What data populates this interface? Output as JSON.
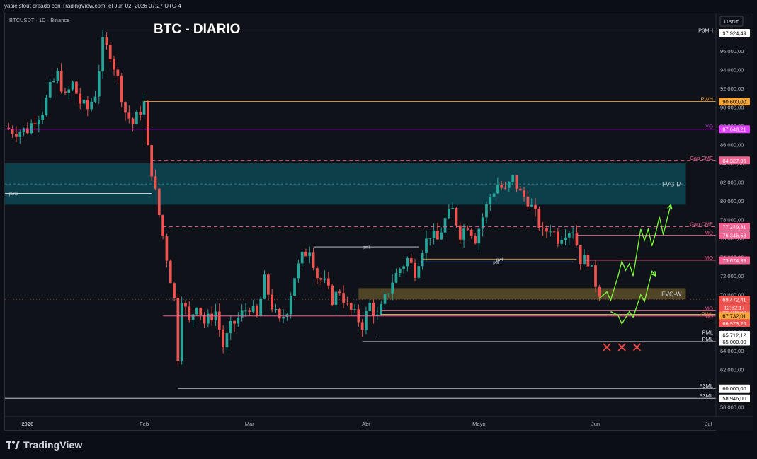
{
  "header": {
    "credit": "yasielstout creado con TradingView.com, el Jun 02, 2026 07:27 UTC-4"
  },
  "symbol": {
    "label": "BTCUSDT · 1D · Binance"
  },
  "currency": "USDT",
  "footer": {
    "brand": "TradingView"
  },
  "colors": {
    "bull": "#26a69a",
    "bear": "#ef5350",
    "fvg_m": "#0e4f5c",
    "fvg_w": "#6b5a2b",
    "projection": "#7cfc3a"
  },
  "chart_data": {
    "type": "candlestick",
    "title": "BTC - DIARIO",
    "ylim": [
      57000,
      100000
    ],
    "y_ticks": [
      58000,
      60000,
      62000,
      64000,
      66000,
      68000,
      70000,
      72000,
      74000,
      76000,
      78000,
      80000,
      82000,
      84000,
      86000,
      88000,
      90000,
      92000,
      94000,
      96000
    ],
    "y_tick_labels": [
      "58.000,00",
      "60.000,00",
      "62.000,00",
      "64.000,00",
      "66.000,00",
      "68.000,00",
      "70.000,00",
      "72.000,00",
      "74.000,00",
      "76.000,00",
      "78.000,00",
      "80.000,00",
      "82.000,00",
      "84.000,00",
      "86.000,00",
      "88.000,00",
      "90.000,00",
      "92.000,00",
      "94.000,00",
      "96.000,00"
    ],
    "x_labels": [
      {
        "label": "2026",
        "day": 0
      },
      {
        "label": "Feb",
        "day": 31
      },
      {
        "label": "Mar",
        "day": 59
      },
      {
        "label": "Abr",
        "day": 90
      },
      {
        "label": "Mayo",
        "day": 120
      },
      {
        "label": "Jun",
        "day": 151
      },
      {
        "label": "Jul",
        "day": 181
      }
    ],
    "x_range_days": [
      -6,
      183
    ],
    "waypoints": [
      [
        -6,
        87800
      ],
      [
        -3,
        87400
      ],
      [
        0,
        87600
      ],
      [
        2,
        88800
      ],
      [
        4,
        89600
      ],
      [
        6,
        92000
      ],
      [
        8,
        93500
      ],
      [
        10,
        91000
      ],
      [
        12,
        92500
      ],
      [
        14,
        90500
      ],
      [
        16,
        89800
      ],
      [
        18,
        91500
      ],
      [
        20,
        96800
      ],
      [
        22,
        95800
      ],
      [
        24,
        93000
      ],
      [
        26,
        89500
      ],
      [
        28,
        88200
      ],
      [
        30,
        89700
      ],
      [
        31,
        90400
      ],
      [
        32,
        85500
      ],
      [
        33,
        83200
      ],
      [
        35,
        78500
      ],
      [
        37,
        74000
      ],
      [
        39,
        69500
      ],
      [
        40,
        63500
      ],
      [
        41,
        69800
      ],
      [
        43,
        67000
      ],
      [
        45,
        69200
      ],
      [
        47,
        67000
      ],
      [
        50,
        68200
      ],
      [
        52,
        64500
      ],
      [
        54,
        66500
      ],
      [
        56,
        67500
      ],
      [
        59,
        68800
      ],
      [
        61,
        67500
      ],
      [
        63,
        71500
      ],
      [
        65,
        68800
      ],
      [
        67,
        67000
      ],
      [
        69,
        68500
      ],
      [
        71,
        72000
      ],
      [
        73,
        74000
      ],
      [
        75,
        75000
      ],
      [
        77,
        72000
      ],
      [
        79,
        71200
      ],
      [
        81,
        69500
      ],
      [
        83,
        70500
      ],
      [
        85,
        68700
      ],
      [
        87,
        67800
      ],
      [
        89,
        66800
      ],
      [
        91,
        69000
      ],
      [
        93,
        67500
      ],
      [
        95,
        69500
      ],
      [
        97,
        71500
      ],
      [
        99,
        72800
      ],
      [
        101,
        73800
      ],
      [
        103,
        72500
      ],
      [
        105,
        75000
      ],
      [
        107,
        76500
      ],
      [
        109,
        75800
      ],
      [
        111,
        78000
      ],
      [
        113,
        79000
      ],
      [
        115,
        76500
      ],
      [
        117,
        77500
      ],
      [
        119,
        76000
      ],
      [
        121,
        78300
      ],
      [
        123,
        80500
      ],
      [
        125,
        81800
      ],
      [
        127,
        81000
      ],
      [
        129,
        82400
      ],
      [
        131,
        80800
      ],
      [
        133,
        80100
      ],
      [
        135,
        78500
      ],
      [
        137,
        76500
      ],
      [
        139,
        77200
      ],
      [
        141,
        76000
      ],
      [
        143,
        76800
      ],
      [
        145,
        77000
      ],
      [
        147,
        73800
      ],
      [
        149,
        73700
      ],
      [
        151,
        71200
      ],
      [
        152,
        70300
      ]
    ],
    "levels": [
      {
        "label": "P3MH",
        "value": 97924.49,
        "value_label": "97.924,49",
        "color": "#e0e3eb",
        "style": "solid",
        "x_start": 20,
        "badge_bg": "#ffffff",
        "badge_fg": "#000000"
      },
      {
        "label": "PWH",
        "value": 90600,
        "value_label": "90.600,00",
        "color": "#e9a23b",
        "style": "solid",
        "x_start": 31,
        "badge_bg": "#f5a53a",
        "badge_fg": "#000000"
      },
      {
        "label": "YO",
        "value": 87648.21,
        "value_label": "87.648,21",
        "color": "#d946ef",
        "style": "solid",
        "x_start": -6,
        "badge_bg": "#e040fb",
        "badge_fg": "#ffffff"
      },
      {
        "label": "Gap CME",
        "value": 84327.06,
        "value_label": "84.327,06",
        "color": "#f06292",
        "style": "dashed",
        "x_start": 33,
        "badge_bg": "#f06292",
        "badge_fg": "#ffffff"
      },
      {
        "label": "Gap CME",
        "value": 77249.31,
        "value_label": "77.249,31",
        "color": "#f06292",
        "style": "dashed",
        "x_start": 36,
        "badge_bg": "#f06292",
        "badge_fg": "#ffffff"
      },
      {
        "label": "MO",
        "value": 76346.58,
        "value_label": "76.346,58",
        "color": "#f06292",
        "style": "solid",
        "x_start": 146,
        "badge_bg": "#f06292",
        "badge_fg": "#ffffff"
      },
      {
        "label": "MO",
        "value": 73674.39,
        "value_label": "73.674,39",
        "color": "#f06292",
        "style": "solid",
        "x_start": 148,
        "badge_bg": "#f06292",
        "badge_fg": "#ffffff"
      },
      {
        "label": "",
        "value": 69472.41,
        "value_label": "69.472,41",
        "color": "#ef5350",
        "style": "dotted",
        "x_start": -6,
        "badge_bg": "#ef5350",
        "badge_fg": "#ffffff"
      },
      {
        "label": "MO",
        "value": 68284.49,
        "value_label": "68.284,49",
        "color": "#f06292",
        "style": "solid",
        "x_start": 94,
        "badge_bg": "#f06292",
        "badge_fg": "#ffffff"
      },
      {
        "label": "PWL",
        "value": 67900,
        "value_label": "",
        "color": "#e9a23b",
        "style": "solid",
        "x_start": 94,
        "badge_bg": "",
        "badge_fg": ""
      },
      {
        "label": "MO",
        "value": 67732.01,
        "value_label": "67.732,01",
        "color": "#f06292",
        "style": "solid",
        "x_start": 36,
        "badge_bg": "#f5a53a",
        "badge_fg": "#000000"
      },
      {
        "label": "",
        "value": 66973.26,
        "value_label": "66.973,26",
        "color": "#ef5350",
        "style": "none",
        "x_start": 0,
        "badge_bg": "#ef5350",
        "badge_fg": "#ffffff"
      },
      {
        "label": "PML",
        "value": 65712.12,
        "value_label": "65.712,12",
        "color": "#e0e3eb",
        "style": "solid",
        "x_start": 93,
        "badge_bg": "#ffffff",
        "badge_fg": "#000000"
      },
      {
        "label": "PML",
        "value": 65000,
        "value_label": "65.000,00",
        "color": "#e0e3eb",
        "style": "solid",
        "x_start": 89,
        "badge_bg": "#ffffff",
        "badge_fg": "#000000"
      },
      {
        "label": "P3ML",
        "value": 60000,
        "value_label": "60.000,00",
        "color": "#e0e3eb",
        "style": "solid",
        "x_start": 40,
        "badge_bg": "#ffffff",
        "badge_fg": "#000000"
      },
      {
        "label": "P3ML",
        "value": 58946,
        "value_label": "58.946,00",
        "color": "#e0e3eb",
        "style": "solid",
        "x_start": -6,
        "badge_bg": "#ffffff",
        "badge_fg": "#000000"
      }
    ],
    "price_timer": {
      "value": 69472.41,
      "text": "12:32:17"
    },
    "zones": [
      {
        "label": "FVG-M",
        "y_top": 84000,
        "y_bottom": 79600,
        "x_start": -6,
        "x_end": 175
      },
      {
        "label": "FVG-W",
        "y_top": 70700,
        "y_bottom": 69500,
        "x_start": 88,
        "x_end": 175
      }
    ],
    "segments": [
      {
        "label": "p3mi",
        "value": 80800,
        "x_start": -6,
        "x_end": 33,
        "color": "#ffffff"
      },
      {
        "label": "pml",
        "value": 75100,
        "x_start": 76,
        "x_end": 104,
        "color": "#d1d4dc"
      },
      {
        "label": "pwl",
        "value": 73800,
        "x_start": 105,
        "x_end": 146,
        "color": "#e9a23b"
      },
      {
        "label": "pdl",
        "value": 73500,
        "x_start": 104,
        "x_end": 145,
        "color": "#5b8def"
      }
    ],
    "projection_up": [
      [
        152,
        69600
      ],
      [
        154,
        70300
      ],
      [
        155,
        69400
      ],
      [
        157,
        72000
      ],
      [
        158,
        73600
      ],
      [
        159,
        72600
      ],
      [
        160,
        73300
      ],
      [
        161,
        72000
      ],
      [
        163,
        77000
      ],
      [
        164,
        75800
      ],
      [
        165,
        77000
      ],
      [
        166,
        75200
      ],
      [
        167,
        76600
      ],
      [
        168,
        78300
      ],
      [
        169,
        76400
      ],
      [
        171,
        79600
      ]
    ],
    "projection_down": [
      [
        155,
        68200
      ],
      [
        157,
        67800
      ],
      [
        158,
        66900
      ],
      [
        160,
        68200
      ],
      [
        161,
        67600
      ],
      [
        163,
        70000
      ],
      [
        164,
        69300
      ],
      [
        166,
        72500
      ],
      [
        167,
        72000
      ]
    ],
    "x_marks": {
      "values_days": [
        154,
        158,
        162
      ],
      "y": 64400
    }
  }
}
